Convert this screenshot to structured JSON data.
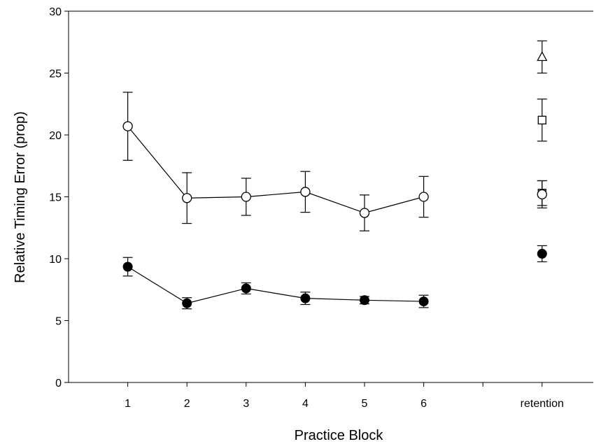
{
  "chart_data": {
    "type": "line",
    "xlabel": "Practice Block",
    "ylabel": "Relative Timing Error (prop)",
    "ylim": [
      0,
      30
    ],
    "yticks": [
      0,
      5,
      10,
      15,
      20,
      25,
      30
    ],
    "xticks": [
      {
        "pos": 1,
        "label": "1"
      },
      {
        "pos": 2,
        "label": "2"
      },
      {
        "pos": 3,
        "label": "3"
      },
      {
        "pos": 4,
        "label": "4"
      },
      {
        "pos": 5,
        "label": "5"
      },
      {
        "pos": 6,
        "label": "6"
      },
      {
        "pos": 7,
        "label": ""
      },
      {
        "pos": 8,
        "label": "retention"
      }
    ],
    "xlim": [
      0,
      9
    ],
    "grid": false,
    "series": [
      {
        "marker": "circle-open",
        "x": [
          1,
          2,
          3,
          4,
          5,
          6
        ],
        "y": [
          20.7,
          14.9,
          15.0,
          15.4,
          13.7,
          15.0
        ],
        "err": [
          2.75,
          2.05,
          1.5,
          1.65,
          1.45,
          1.65
        ],
        "connected": true
      },
      {
        "marker": "circle-filled",
        "x": [
          1,
          2,
          3,
          4,
          5,
          6
        ],
        "y": [
          9.35,
          6.4,
          7.6,
          6.8,
          6.65,
          6.55
        ],
        "err": [
          0.75,
          0.45,
          0.45,
          0.5,
          0.3,
          0.5
        ],
        "connected": true
      },
      {
        "marker": "triangle-open",
        "x": [
          8
        ],
        "y": [
          26.3
        ],
        "err": [
          1.3
        ],
        "connected": false
      },
      {
        "marker": "square-open",
        "x": [
          8
        ],
        "y": [
          21.2
        ],
        "err": [
          1.7
        ],
        "connected": false
      },
      {
        "marker": "square-open",
        "x": [
          8
        ],
        "y": [
          15.3
        ],
        "err": [
          1.0
        ],
        "connected": false
      },
      {
        "marker": "circle-open",
        "x": [
          8
        ],
        "y": [
          15.2
        ],
        "err": [
          1.1
        ],
        "connected": false
      },
      {
        "marker": "circle-filled",
        "x": [
          8
        ],
        "y": [
          10.4
        ],
        "err": [
          0.65
        ],
        "connected": false
      }
    ]
  }
}
